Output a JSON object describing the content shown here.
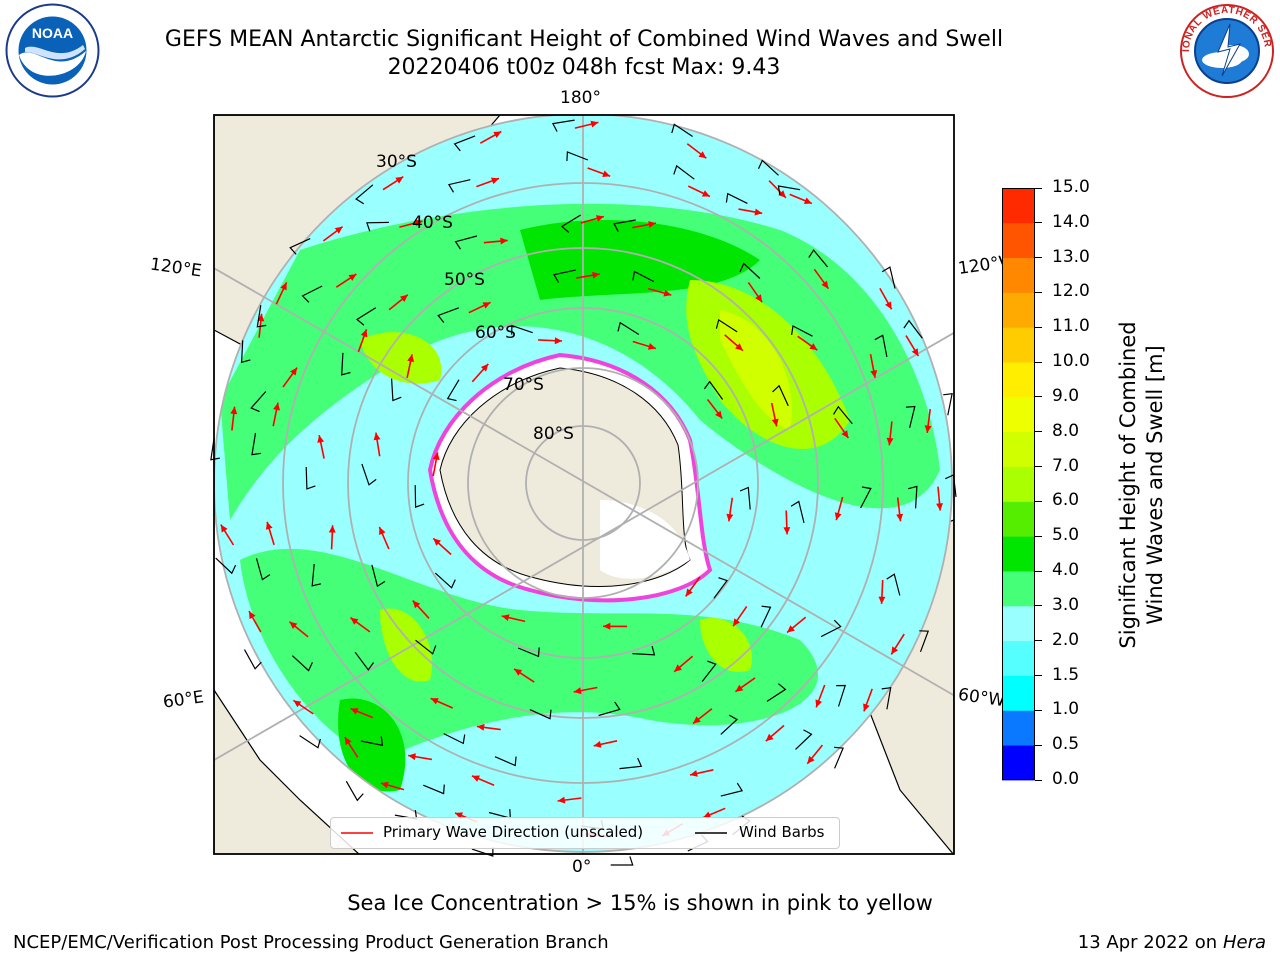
{
  "title": {
    "line1": "GEFS MEAN Antarctic Significant Height of Combined Wind Waves and Swell",
    "line2": "20220406 t00z 048h fcst   Max: 9.43"
  },
  "logos": {
    "left": {
      "icon": "noaa-logo-icon",
      "text": "NOAA"
    },
    "right": {
      "icon": "nws-logo-icon",
      "text": "NATIONAL WEATHER SERVICE"
    }
  },
  "map": {
    "meridian_labels": {
      "top": "180°",
      "bottom": "0°",
      "left_upper": "120°E",
      "left_lower": "60°E",
      "right_upper": "120°W",
      "right_lower": "60°W"
    },
    "latitude_labels": [
      "30°S",
      "40°S",
      "50°S",
      "60°S",
      "70°S",
      "80°S"
    ],
    "colors": {
      "land": "#efebdc",
      "ice": "#ffffff",
      "ice_edge": "#ee44dd",
      "ice_inner": "#ff9933",
      "grid": "#b0b0b0",
      "wave_arrow": "#ff0000",
      "barb": "#000000"
    }
  },
  "legend": {
    "wave_label": "Primary Wave Direction (unscaled)",
    "barb_label": "Wind Barbs"
  },
  "colorbar": {
    "label_line1": "Significant Height of Combined",
    "label_line2": "Wind Waves and Swell [m]",
    "ticks": [
      "15.0",
      "14.0",
      "13.0",
      "12.0",
      "11.0",
      "10.0",
      "9.0",
      "8.0",
      "7.0",
      "6.0",
      "5.0",
      "4.0",
      "3.0",
      "2.0",
      "1.5",
      "1.0",
      "0.5",
      "0.0"
    ],
    "colors_bottom_to_top": [
      "#0000ff",
      "#0a78ff",
      "#00ffff",
      "#55ffff",
      "#99ffff",
      "#44ff77",
      "#00e600",
      "#55ee00",
      "#aaff00",
      "#d0ff00",
      "#eeff00",
      "#ffee00",
      "#ffcc00",
      "#ffaa00",
      "#ff8800",
      "#ff5500",
      "#ff2a00"
    ]
  },
  "caption": "Sea Ice Concentration > 15% is shown in pink to yellow",
  "footer": {
    "left": "NCEP/EMC/Verification Post Processing Product Generation Branch",
    "right_prefix": "13 Apr 2022 on ",
    "right_italic": "Hera"
  }
}
